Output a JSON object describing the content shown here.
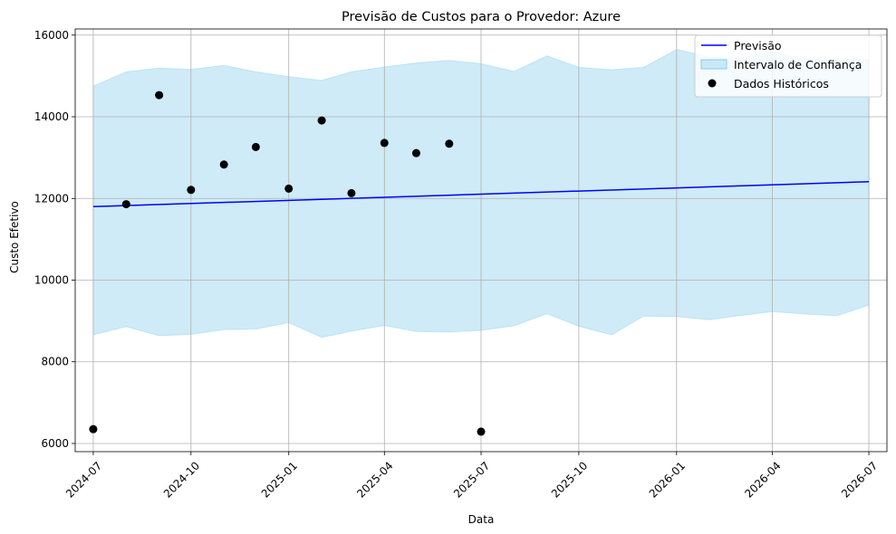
{
  "chart_data": {
    "type": "line",
    "title": "Previsão de Custos para o Provedor: Azure",
    "xlabel": "Data",
    "ylabel": "Custo Efetivo",
    "x_ticks": [
      "2024-07",
      "2024-10",
      "2025-01",
      "2025-04",
      "2025-07",
      "2025-10",
      "2026-01",
      "2026-04",
      "2026-07"
    ],
    "y_ticks": [
      6000,
      8000,
      10000,
      12000,
      14000,
      16000
    ],
    "ylim": [
      5800,
      16150
    ],
    "xlim": [
      "2024-06-14",
      "2026-07-18"
    ],
    "grid": true,
    "legend_position": "top-right",
    "legend": {
      "forecast": "Previsão",
      "interval": "Intervalo de Confiança",
      "historical": "Dados Históricos"
    },
    "colors": {
      "forecast": "#0000ff",
      "interval_fill": "#87ceeb",
      "historical": "#000000",
      "grid": "#b0b0b0"
    },
    "forecast": {
      "x": [
        "2024-07-01",
        "2026-07-01"
      ],
      "y": [
        11800,
        12410
      ]
    },
    "interval": {
      "x": [
        "2024-07-01",
        "2024-08-01",
        "2024-09-01",
        "2024-10-01",
        "2024-11-01",
        "2024-12-01",
        "2025-01-01",
        "2025-02-01",
        "2025-03-01",
        "2025-04-01",
        "2025-05-01",
        "2025-06-01",
        "2025-07-01",
        "2025-08-01",
        "2025-09-01",
        "2025-10-01",
        "2025-11-01",
        "2025-12-01",
        "2026-01-01",
        "2026-02-01",
        "2026-03-01",
        "2026-04-01",
        "2026-05-01",
        "2026-06-01",
        "2026-07-01"
      ],
      "upper": [
        14750,
        15100,
        15190,
        15160,
        15260,
        15100,
        14980,
        14890,
        15100,
        15220,
        15320,
        15380,
        15300,
        15110,
        15490,
        15210,
        15150,
        15210,
        15650,
        15460,
        15420,
        15600,
        15390,
        15390,
        15400
      ],
      "lower": [
        8660,
        8860,
        8640,
        8670,
        8790,
        8800,
        8960,
        8600,
        8750,
        8890,
        8740,
        8730,
        8770,
        8880,
        9180,
        8870,
        8660,
        9120,
        9110,
        9030,
        9130,
        9230,
        9170,
        9130,
        9390
      ]
    },
    "historical": {
      "x": [
        "2024-07-01",
        "2024-08-01",
        "2024-09-01",
        "2024-10-01",
        "2024-11-01",
        "2024-12-01",
        "2025-01-01",
        "2025-02-01",
        "2025-03-01",
        "2025-04-01",
        "2025-05-01",
        "2025-06-01",
        "2025-07-01"
      ],
      "y": [
        6350,
        11860,
        14530,
        12210,
        12830,
        13260,
        12240,
        13910,
        12130,
        13360,
        13110,
        13340,
        6290
      ]
    }
  }
}
